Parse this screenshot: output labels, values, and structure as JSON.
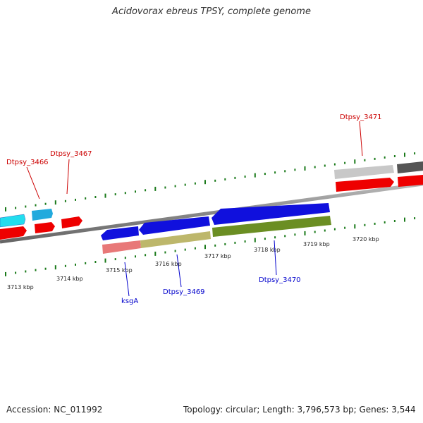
{
  "title": "Acidovorax ebreus TPSY, complete genome",
  "footer": {
    "accession": "Accession: NC_011992",
    "summary": "Topology: circular; Length: 3,796,573 bp; Genes: 3,544"
  },
  "tick_labels": [
    "3713 kbp",
    "3714 kbp",
    "3715 kbp",
    "3716 kbp",
    "3717 kbp",
    "3718 kbp",
    "3719 kbp",
    "3720 kbp"
  ],
  "genes": [
    {
      "name": "Dtpsy_3466",
      "color": "#cc0000"
    },
    {
      "name": "Dtpsy_3467",
      "color": "#cc0000"
    },
    {
      "name": "Dtpsy_3471",
      "color": "#cc0000"
    },
    {
      "name": "ksgA",
      "color": "#0000cc"
    },
    {
      "name": "Dtpsy_3469",
      "color": "#0000cc"
    },
    {
      "name": "Dtpsy_3470",
      "color": "#0000cc"
    }
  ],
  "colors": {
    "backbone": "#888888",
    "tick": "#1a7a1a",
    "red": "#ee0000",
    "blue": "#1010dd",
    "cyan": "#22ddee",
    "skyblue": "#22aadd",
    "pink": "#e87878",
    "khaki": "#bdb76b",
    "olive": "#6b8e23",
    "lightgray": "#c8c8c8",
    "darkgray": "#555555"
  }
}
